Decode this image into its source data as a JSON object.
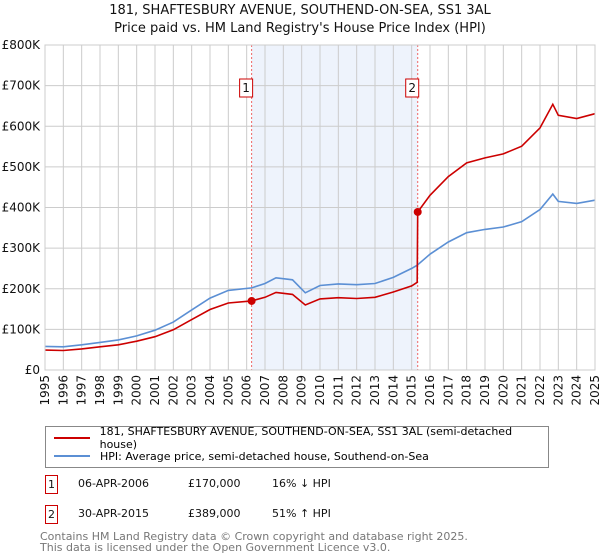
{
  "title_line1": "181, SHAFTESBURY AVENUE, SOUTHEND-ON-SEA, SS1 3AL",
  "title_line2": "Price paid vs. HM Land Registry's House Price Index (HPI)",
  "chart_data": {
    "type": "line",
    "title": "181, SHAFTESBURY AVENUE, SOUTHEND-ON-SEA, SS1 3AL — Price paid vs. HM Land Registry's House Price Index (HPI)",
    "xlim": [
      1995,
      2025
    ],
    "ylim": [
      0,
      800000
    ],
    "grid": true,
    "x_ticks": [
      "1995",
      "1996",
      "1997",
      "1998",
      "1999",
      "2000",
      "2001",
      "2002",
      "2003",
      "2004",
      "2005",
      "2006",
      "2007",
      "2008",
      "2009",
      "2010",
      "2011",
      "2012",
      "2013",
      "2014",
      "2015",
      "2016",
      "2017",
      "2018",
      "2019",
      "2020",
      "2021",
      "2022",
      "2023",
      "2024",
      "2025"
    ],
    "y_ticks": [
      {
        "v": 0,
        "label": "£0"
      },
      {
        "v": 100000,
        "label": "£100K"
      },
      {
        "v": 200000,
        "label": "£200K"
      },
      {
        "v": 300000,
        "label": "£300K"
      },
      {
        "v": 400000,
        "label": "£400K"
      },
      {
        "v": 500000,
        "label": "£500K"
      },
      {
        "v": 600000,
        "label": "£600K"
      },
      {
        "v": 700000,
        "label": "£700K"
      },
      {
        "v": 800000,
        "label": "£800K"
      }
    ],
    "shaded_range": [
      2006.27,
      2015.33
    ],
    "series": [
      {
        "name": "181, SHAFTESBURY AVENUE, SOUTHEND-ON-SEA, SS1 3AL (semi-detached house)",
        "color": "#cc0000",
        "x": [
          1995,
          1996,
          1997,
          1998,
          1999,
          2000,
          2001,
          2002,
          2003,
          2004,
          2005,
          2006.27,
          2007,
          2007.6,
          2008.5,
          2009.2,
          2010,
          2011,
          2012,
          2013,
          2014,
          2015,
          2015.3,
          2015.33,
          2016,
          2017,
          2018,
          2019,
          2020,
          2021,
          2022,
          2022.7,
          2023,
          2024,
          2025
        ],
        "y": [
          49000,
          48000,
          52000,
          57000,
          62000,
          71000,
          82000,
          99000,
          124000,
          149000,
          165000,
          170000,
          179000,
          191000,
          186000,
          160000,
          175000,
          178000,
          176000,
          179000,
          192000,
          207000,
          216000,
          389000,
          430000,
          476000,
          510000,
          522000,
          532000,
          551000,
          596000,
          654000,
          627000,
          619000,
          631000
        ]
      },
      {
        "name": "HPI: Average price, semi-detached house, Southend-on-Sea",
        "color": "#5b8fd4",
        "x": [
          1995,
          1996,
          1997,
          1998,
          1999,
          2000,
          2001,
          2002,
          2003,
          2004,
          2005,
          2006.27,
          2007,
          2007.6,
          2008.5,
          2009.2,
          2010,
          2011,
          2012,
          2013,
          2014,
          2015,
          2015.3,
          2016,
          2017,
          2018,
          2019,
          2020,
          2021,
          2022,
          2022.7,
          2023,
          2024,
          2025
        ],
        "y": [
          58000,
          57000,
          62000,
          68000,
          74000,
          84000,
          98000,
          118000,
          148000,
          177000,
          196000,
          202000,
          213000,
          227000,
          222000,
          190000,
          208000,
          212000,
          210000,
          213000,
          228000,
          250000,
          258000,
          285000,
          315000,
          338000,
          346000,
          352000,
          365000,
          395000,
          433000,
          415000,
          410000,
          418000
        ]
      }
    ],
    "annotations": [
      {
        "label": "1",
        "x": 2006.27,
        "y": 170000
      },
      {
        "label": "2",
        "x": 2015.33,
        "y": 389000
      }
    ]
  },
  "legend": {
    "property": "181, SHAFTESBURY AVENUE, SOUTHEND-ON-SEA, SS1 3AL (semi-detached house)",
    "hpi": "HPI: Average price, semi-detached house, Southend-on-Sea"
  },
  "transactions": [
    {
      "num": "1",
      "date": "06-APR-2006",
      "price": "£170,000",
      "hpi": "16% ↓ HPI"
    },
    {
      "num": "2",
      "date": "30-APR-2015",
      "price": "£389,000",
      "hpi": "51% ↑ HPI"
    }
  ],
  "footer": {
    "line1": "Contains HM Land Registry data © Crown copyright and database right 2025.",
    "line2": "This data is licensed under the Open Government Licence v3.0."
  }
}
